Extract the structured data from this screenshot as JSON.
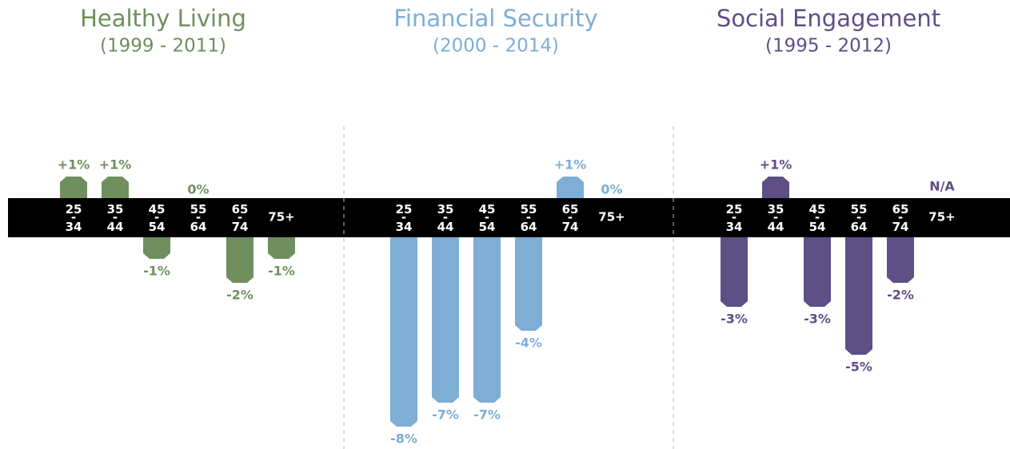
{
  "chart_data": [
    {
      "type": "bar",
      "title": "Healthy Living",
      "subtitle": "(1999 - 2011)",
      "color": "#6f8f5e",
      "categories": [
        "25-34",
        "35-44",
        "45-54",
        "55-64",
        "65-74",
        "75+"
      ],
      "values": [
        1,
        1,
        -1,
        0,
        -2,
        -1
      ],
      "value_labels": [
        "+1%",
        "+1%",
        "-1%",
        "0%",
        "-2%",
        "-1%"
      ]
    },
    {
      "type": "bar",
      "title": "Financial Security",
      "subtitle": "(2000 - 2014)",
      "color": "#7eadd6",
      "categories": [
        "25-34",
        "35-44",
        "45-54",
        "55-64",
        "65-74",
        "75+"
      ],
      "values": [
        -8,
        -7,
        -7,
        -4,
        1,
        0
      ],
      "value_labels": [
        "-8%",
        "-7%",
        "-7%",
        "-4%",
        "+1%",
        "0%"
      ]
    },
    {
      "type": "bar",
      "title": "Social Engagement",
      "subtitle": "(1995 - 2012)",
      "color": "#5e4f86",
      "categories": [
        "25-34",
        "35-44",
        "45-54",
        "55-64",
        "65-74",
        "75+"
      ],
      "values": [
        -3,
        1,
        -3,
        -5,
        -2,
        null
      ],
      "value_labels": [
        "-3%",
        "+1%",
        "-3%",
        "-5%",
        "-2%",
        "N/A"
      ]
    }
  ]
}
